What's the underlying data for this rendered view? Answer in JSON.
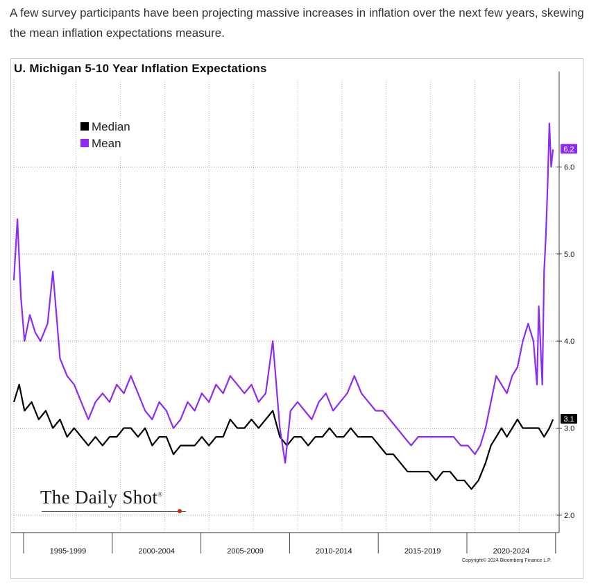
{
  "caption": "A few survey participants have been projecting massive increases in inflation over the next few years, skewing the mean inflation expectations measure.",
  "chart_data": {
    "type": "line",
    "title": "U. Michigan 5-10 Year Inflation Expectations",
    "x_period_labels": [
      "1995-1999",
      "2000-2004",
      "2005-2009",
      "2010-2014",
      "2015-2019",
      "2020-2024"
    ],
    "ylim": [
      1.8,
      7.0
    ],
    "y_ticks": [
      2.0,
      3.0,
      4.0,
      5.0,
      6.0
    ],
    "y_tick_labels": [
      "2.0",
      "3.0",
      "4.0",
      "5.0",
      "6.0"
    ],
    "grid": true,
    "legend_position": "top-left",
    "series": [
      {
        "name": "Median",
        "color": "#000000",
        "last_value_label": "3.1",
        "points": [
          [
            1994.0,
            3.3
          ],
          [
            1994.3,
            3.5
          ],
          [
            1994.6,
            3.2
          ],
          [
            1995.0,
            3.3
          ],
          [
            1995.4,
            3.1
          ],
          [
            1995.8,
            3.2
          ],
          [
            1996.2,
            3.0
          ],
          [
            1996.6,
            3.1
          ],
          [
            1997.0,
            2.9
          ],
          [
            1997.4,
            3.0
          ],
          [
            1997.8,
            2.9
          ],
          [
            1998.2,
            2.8
          ],
          [
            1998.6,
            2.9
          ],
          [
            1999.0,
            2.8
          ],
          [
            1999.4,
            2.9
          ],
          [
            1999.8,
            2.9
          ],
          [
            2000.2,
            3.0
          ],
          [
            2000.6,
            3.0
          ],
          [
            2001.0,
            2.9
          ],
          [
            2001.4,
            3.0
          ],
          [
            2001.8,
            2.8
          ],
          [
            2002.2,
            2.9
          ],
          [
            2002.6,
            2.9
          ],
          [
            2003.0,
            2.7
          ],
          [
            2003.4,
            2.8
          ],
          [
            2003.8,
            2.8
          ],
          [
            2004.2,
            2.8
          ],
          [
            2004.6,
            2.9
          ],
          [
            2005.0,
            2.8
          ],
          [
            2005.4,
            2.9
          ],
          [
            2005.8,
            2.9
          ],
          [
            2006.2,
            3.1
          ],
          [
            2006.6,
            3.0
          ],
          [
            2007.0,
            3.0
          ],
          [
            2007.4,
            3.1
          ],
          [
            2007.8,
            3.0
          ],
          [
            2008.2,
            3.1
          ],
          [
            2008.6,
            3.2
          ],
          [
            2009.0,
            2.9
          ],
          [
            2009.4,
            2.8
          ],
          [
            2009.8,
            2.9
          ],
          [
            2010.2,
            2.9
          ],
          [
            2010.6,
            2.8
          ],
          [
            2011.0,
            2.9
          ],
          [
            2011.4,
            2.9
          ],
          [
            2011.8,
            3.0
          ],
          [
            2012.2,
            2.9
          ],
          [
            2012.6,
            2.9
          ],
          [
            2013.0,
            3.0
          ],
          [
            2013.4,
            2.9
          ],
          [
            2013.8,
            2.9
          ],
          [
            2014.2,
            2.9
          ],
          [
            2014.6,
            2.8
          ],
          [
            2015.0,
            2.7
          ],
          [
            2015.4,
            2.7
          ],
          [
            2015.8,
            2.6
          ],
          [
            2016.2,
            2.5
          ],
          [
            2016.6,
            2.5
          ],
          [
            2017.0,
            2.5
          ],
          [
            2017.4,
            2.5
          ],
          [
            2017.8,
            2.4
          ],
          [
            2018.2,
            2.5
          ],
          [
            2018.6,
            2.5
          ],
          [
            2019.0,
            2.4
          ],
          [
            2019.4,
            2.4
          ],
          [
            2019.8,
            2.3
          ],
          [
            2020.2,
            2.4
          ],
          [
            2020.6,
            2.6
          ],
          [
            2020.9,
            2.8
          ],
          [
            2021.2,
            2.9
          ],
          [
            2021.5,
            3.0
          ],
          [
            2021.8,
            2.9
          ],
          [
            2022.1,
            3.0
          ],
          [
            2022.4,
            3.1
          ],
          [
            2022.7,
            3.0
          ],
          [
            2023.0,
            3.0
          ],
          [
            2023.3,
            3.0
          ],
          [
            2023.6,
            3.0
          ],
          [
            2023.9,
            2.9
          ],
          [
            2024.2,
            3.0
          ],
          [
            2024.4,
            3.1
          ]
        ]
      },
      {
        "name": "Mean",
        "color": "#8c2cf0",
        "last_value_label": "6.2",
        "points": [
          [
            1994.0,
            4.7
          ],
          [
            1994.2,
            5.4
          ],
          [
            1994.4,
            4.5
          ],
          [
            1994.6,
            4.0
          ],
          [
            1994.9,
            4.3
          ],
          [
            1995.2,
            4.1
          ],
          [
            1995.5,
            4.0
          ],
          [
            1995.9,
            4.2
          ],
          [
            1996.2,
            4.8
          ],
          [
            1996.6,
            3.8
          ],
          [
            1997.0,
            3.6
          ],
          [
            1997.4,
            3.5
          ],
          [
            1997.8,
            3.3
          ],
          [
            1998.2,
            3.1
          ],
          [
            1998.6,
            3.3
          ],
          [
            1999.0,
            3.4
          ],
          [
            1999.4,
            3.3
          ],
          [
            1999.8,
            3.5
          ],
          [
            2000.2,
            3.4
          ],
          [
            2000.6,
            3.6
          ],
          [
            2001.0,
            3.4
          ],
          [
            2001.4,
            3.2
          ],
          [
            2001.8,
            3.1
          ],
          [
            2002.2,
            3.3
          ],
          [
            2002.6,
            3.2
          ],
          [
            2003.0,
            3.0
          ],
          [
            2003.4,
            3.1
          ],
          [
            2003.8,
            3.3
          ],
          [
            2004.2,
            3.2
          ],
          [
            2004.6,
            3.4
          ],
          [
            2005.0,
            3.3
          ],
          [
            2005.4,
            3.5
          ],
          [
            2005.8,
            3.4
          ],
          [
            2006.2,
            3.6
          ],
          [
            2006.6,
            3.5
          ],
          [
            2007.0,
            3.4
          ],
          [
            2007.4,
            3.5
          ],
          [
            2007.8,
            3.3
          ],
          [
            2008.2,
            3.4
          ],
          [
            2008.6,
            4.0
          ],
          [
            2009.0,
            3.0
          ],
          [
            2009.3,
            2.6
          ],
          [
            2009.6,
            3.2
          ],
          [
            2010.0,
            3.3
          ],
          [
            2010.4,
            3.2
          ],
          [
            2010.8,
            3.1
          ],
          [
            2011.2,
            3.3
          ],
          [
            2011.6,
            3.4
          ],
          [
            2012.0,
            3.2
          ],
          [
            2012.4,
            3.3
          ],
          [
            2012.8,
            3.4
          ],
          [
            2013.2,
            3.6
          ],
          [
            2013.6,
            3.4
          ],
          [
            2014.0,
            3.3
          ],
          [
            2014.4,
            3.2
          ],
          [
            2014.8,
            3.2
          ],
          [
            2015.2,
            3.1
          ],
          [
            2015.6,
            3.0
          ],
          [
            2016.0,
            2.9
          ],
          [
            2016.4,
            2.8
          ],
          [
            2016.8,
            2.9
          ],
          [
            2017.2,
            2.9
          ],
          [
            2017.6,
            2.9
          ],
          [
            2018.0,
            2.9
          ],
          [
            2018.4,
            2.9
          ],
          [
            2018.8,
            2.9
          ],
          [
            2019.2,
            2.8
          ],
          [
            2019.6,
            2.8
          ],
          [
            2020.0,
            2.7
          ],
          [
            2020.3,
            2.8
          ],
          [
            2020.6,
            3.0
          ],
          [
            2020.9,
            3.3
          ],
          [
            2021.2,
            3.6
          ],
          [
            2021.5,
            3.5
          ],
          [
            2021.8,
            3.4
          ],
          [
            2022.1,
            3.6
          ],
          [
            2022.4,
            3.7
          ],
          [
            2022.7,
            4.0
          ],
          [
            2023.0,
            4.2
          ],
          [
            2023.3,
            4.0
          ],
          [
            2023.5,
            3.5
          ],
          [
            2023.6,
            4.4
          ],
          [
            2023.8,
            3.5
          ],
          [
            2023.9,
            4.8
          ],
          [
            2024.0,
            5.2
          ],
          [
            2024.1,
            5.8
          ],
          [
            2024.2,
            6.5
          ],
          [
            2024.3,
            6.0
          ],
          [
            2024.4,
            6.2
          ]
        ]
      }
    ]
  },
  "branding": {
    "logo_text": "The Daily Shot",
    "logo_mark": "®",
    "copyright": "Copyright© 2024 Bloomberg Finance L.P."
  }
}
